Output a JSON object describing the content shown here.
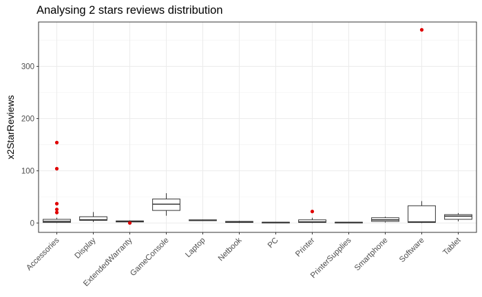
{
  "chart_data": {
    "type": "boxplot",
    "title": "Analysing 2 stars reviews distribution",
    "xlabel": "",
    "ylabel": "x2StarReviews",
    "ylim": [
      -18,
      385
    ],
    "yticks": [
      0,
      100,
      200,
      300
    ],
    "grid": true,
    "box_color": "#333333",
    "outlier_color": "#e00000",
    "categories": [
      "Accessories",
      "Display",
      "ExtendedWarranty",
      "GameConsole",
      "Laptop",
      "Netbook",
      "PC",
      "Printer",
      "PrinterSupplies",
      "Smartphone",
      "Software",
      "Tablet"
    ],
    "boxes": [
      {
        "category": "Accessories",
        "lower": 0,
        "q1": 1,
        "median": 3,
        "q3": 7,
        "upper": 10,
        "outliers": [
          154,
          104,
          37,
          26,
          20
        ]
      },
      {
        "category": "Display",
        "lower": 2,
        "q1": 5,
        "median": 6,
        "q3": 12,
        "upper": 21,
        "outliers": []
      },
      {
        "category": "ExtendedWarranty",
        "lower": 0,
        "q1": 2,
        "median": 3,
        "q3": 4,
        "upper": 5,
        "outliers": [
          0
        ]
      },
      {
        "category": "GameConsole",
        "lower": 14,
        "q1": 24,
        "median": 36,
        "q3": 46,
        "upper": 57,
        "outliers": []
      },
      {
        "category": "Laptop",
        "lower": 4,
        "q1": 4.5,
        "median": 5,
        "q3": 6,
        "upper": 6.5,
        "outliers": []
      },
      {
        "category": "Netbook",
        "lower": 0,
        "q1": 1,
        "median": 2,
        "q3": 3,
        "upper": 4,
        "outliers": []
      },
      {
        "category": "PC",
        "lower": 0,
        "q1": 0,
        "median": 1,
        "q3": 1.5,
        "upper": 2,
        "outliers": []
      },
      {
        "category": "Printer",
        "lower": 0,
        "q1": 1,
        "median": 2,
        "q3": 6,
        "upper": 10,
        "outliers": [
          22
        ]
      },
      {
        "category": "PrinterSupplies",
        "lower": 0,
        "q1": 0,
        "median": 1,
        "q3": 1.5,
        "upper": 2,
        "outliers": []
      },
      {
        "category": "Smartphone",
        "lower": 1,
        "q1": 3,
        "median": 6,
        "q3": 10,
        "upper": 12,
        "outliers": []
      },
      {
        "category": "Software",
        "lower": 0,
        "q1": 1,
        "median": 2,
        "q3": 33,
        "upper": 42,
        "outliers": [
          370
        ]
      },
      {
        "category": "Tablet",
        "lower": 3,
        "q1": 7,
        "median": 13,
        "q3": 16,
        "upper": 19,
        "outliers": []
      }
    ]
  }
}
